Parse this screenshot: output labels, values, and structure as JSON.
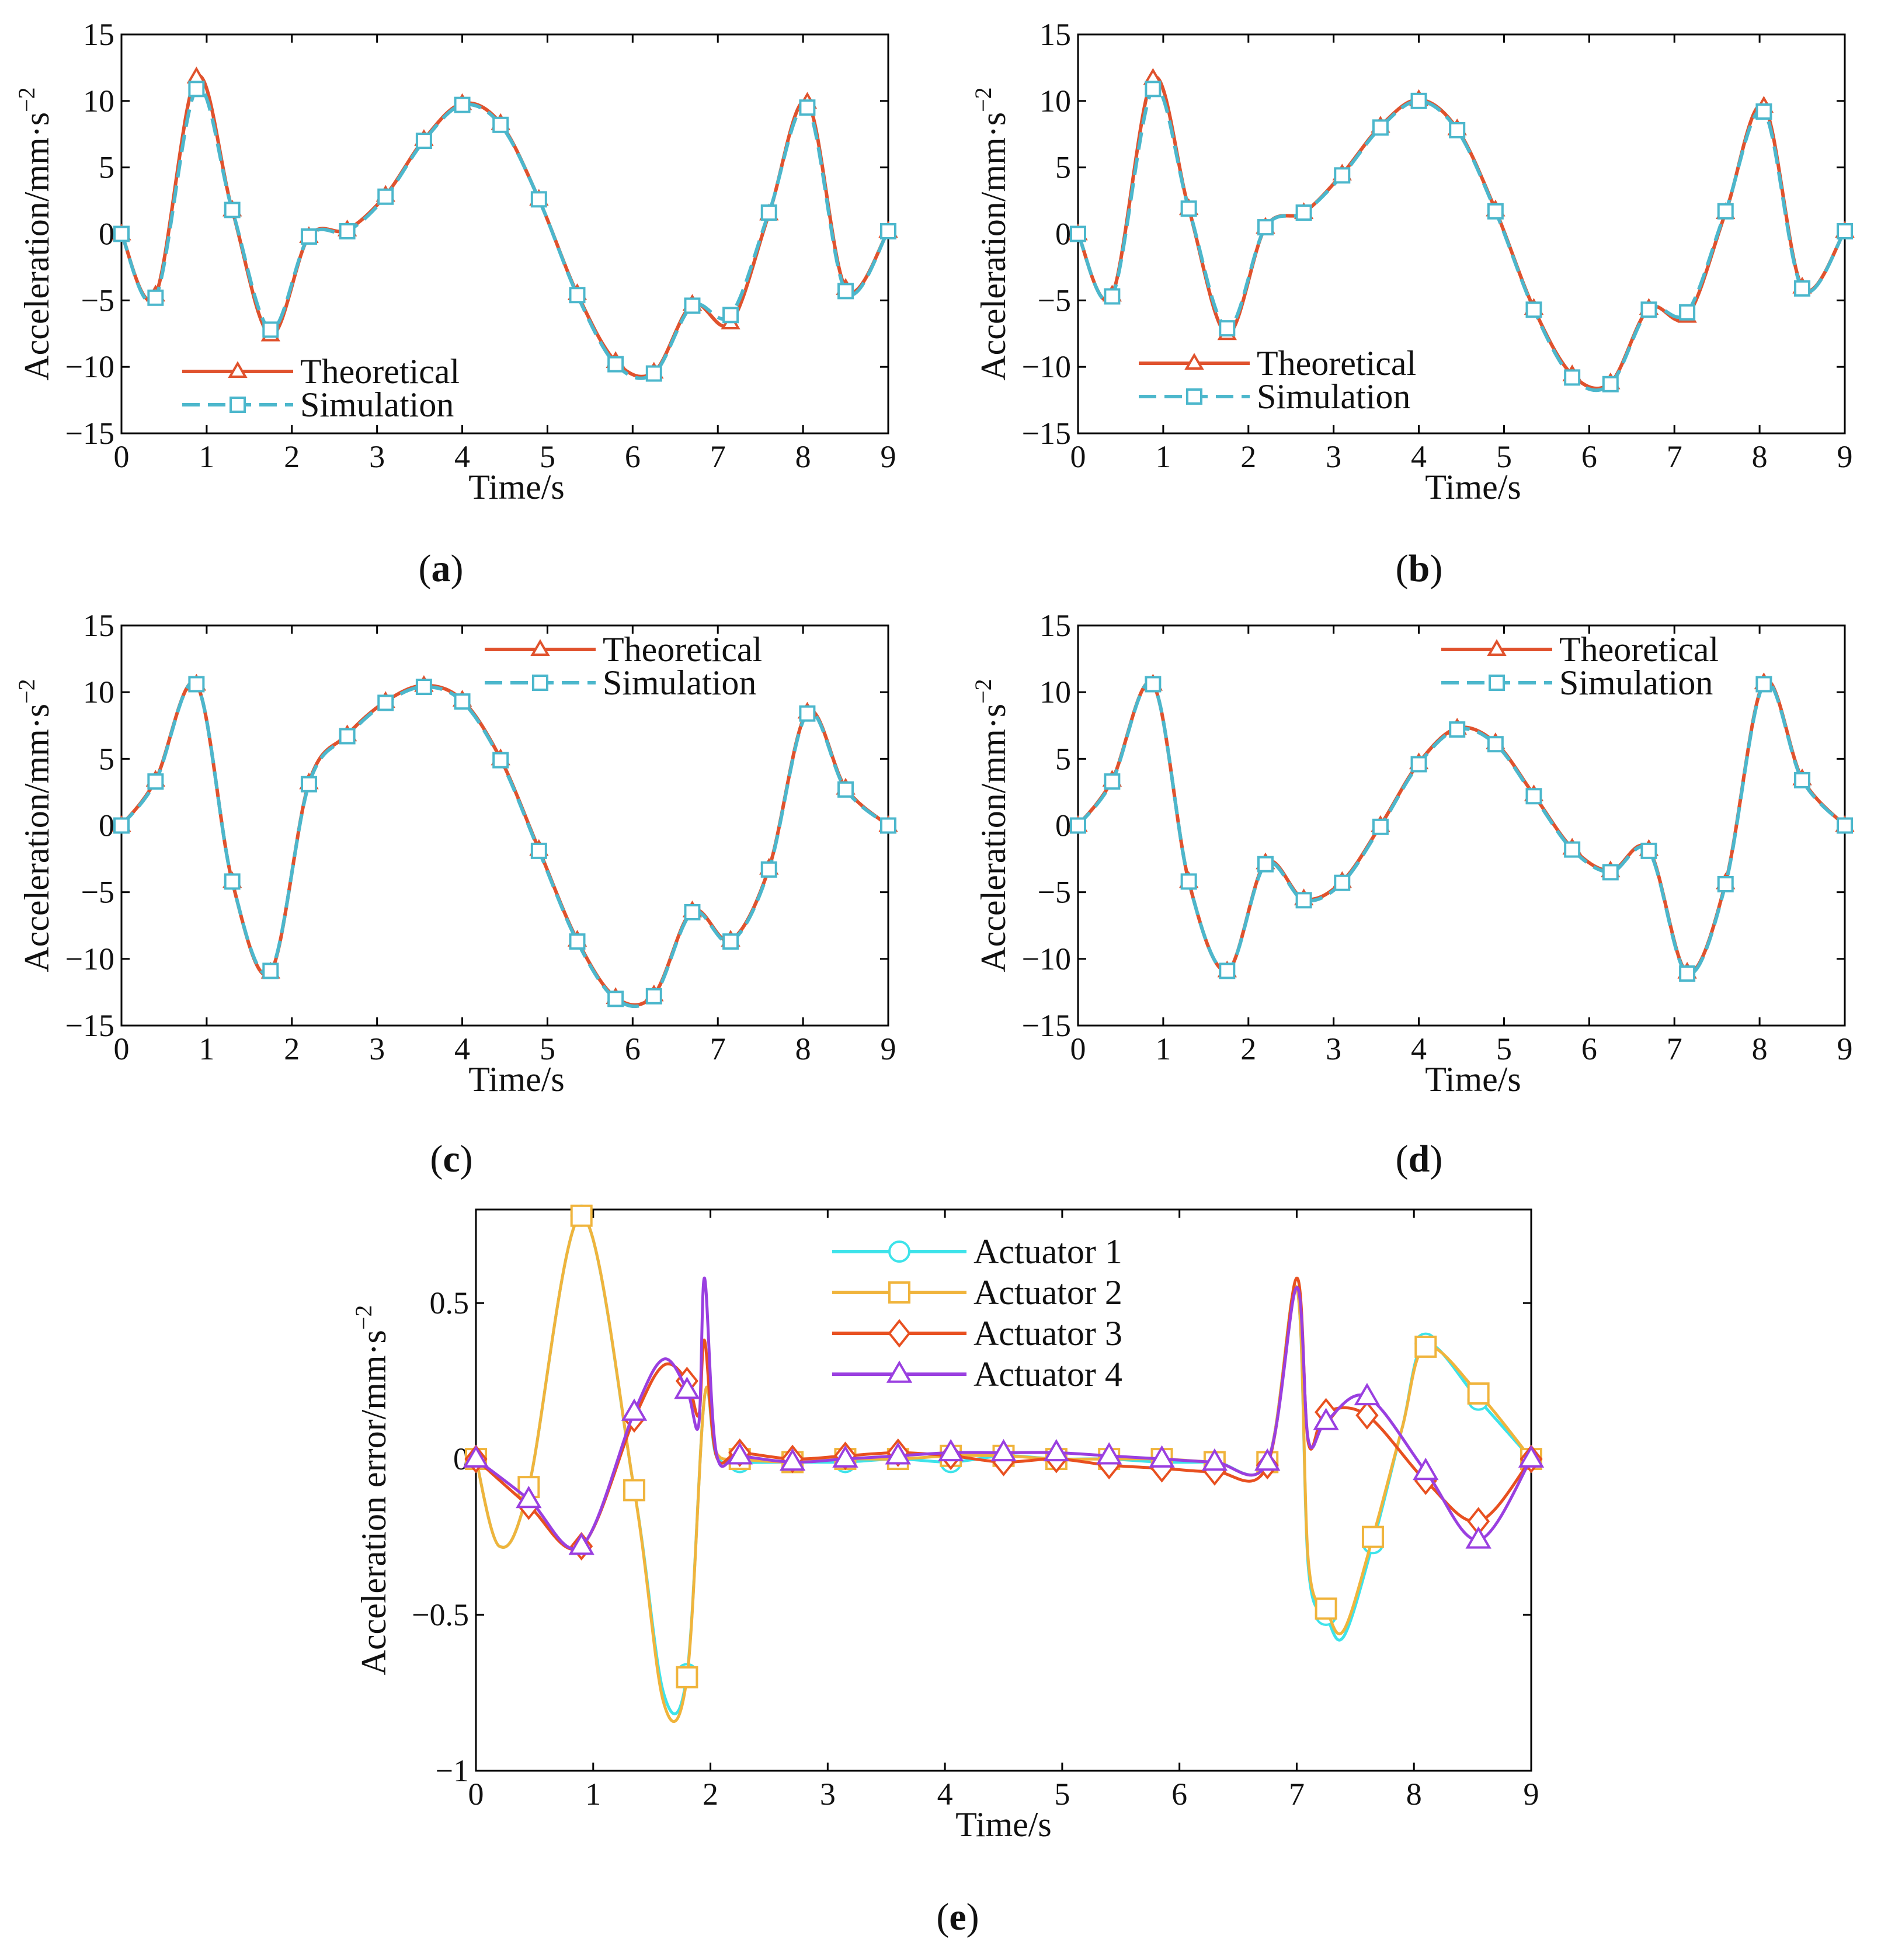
{
  "colors": {
    "theoretical": "#e0522d",
    "simulation": "#4cb7cc",
    "actuator1": "#3de3ea",
    "actuator2": "#f0b43c",
    "actuator3": "#e85020",
    "actuator4": "#9a3fe0"
  },
  "chart_data": [
    {
      "panel": "a",
      "caption": "a",
      "type": "line",
      "xlabel": "Time/s",
      "ylabel": "Acceleration/mm·s",
      "ylabel_sup": "−2",
      "legend_position": "bottom-left",
      "xlim": [
        0,
        9
      ],
      "ylim": [
        -15,
        15
      ],
      "xticks": [
        "0",
        "1",
        "2",
        "3",
        "4",
        "5",
        "6",
        "7",
        "8",
        "9"
      ],
      "yticks": [
        "15",
        "10",
        "5",
        "0",
        "−5",
        "−10",
        "−15"
      ],
      "series": [
        {
          "name": "Theoretical",
          "marker": "triangle",
          "x": [
            0,
            0.4,
            0.88,
            1.3,
            1.75,
            2.2,
            2.65,
            3.1,
            3.55,
            4.0,
            4.45,
            4.9,
            5.35,
            5.8,
            6.25,
            6.7,
            7.15,
            7.6,
            8.05,
            8.5,
            9.0
          ],
          "y": [
            0,
            -4.6,
            11.8,
            1.8,
            -7.6,
            -0.2,
            0.3,
            2.9,
            7.1,
            9.8,
            8.3,
            2.6,
            -4.5,
            -9.6,
            -10.4,
            -5.3,
            -6.7,
            1.5,
            9.9,
            -4.1,
            0.2
          ]
        },
        {
          "name": "Simulation",
          "marker": "square",
          "x": [
            0,
            0.4,
            0.88,
            1.3,
            1.75,
            2.2,
            2.65,
            3.1,
            3.55,
            4.0,
            4.45,
            4.9,
            5.35,
            5.8,
            6.25,
            6.7,
            7.15,
            7.6,
            8.05,
            8.5,
            9.0
          ],
          "y": [
            0,
            -4.8,
            10.9,
            1.8,
            -7.2,
            -0.2,
            0.2,
            2.8,
            7.0,
            9.7,
            8.2,
            2.6,
            -4.6,
            -9.8,
            -10.5,
            -5.4,
            -6.1,
            1.6,
            9.5,
            -4.3,
            0.2
          ]
        }
      ]
    },
    {
      "panel": "b",
      "caption": "b",
      "type": "line",
      "xlabel": "Time/s",
      "ylabel": "Acceleration/mm·s",
      "ylabel_sup": "−2",
      "legend_position": "bottom-left",
      "xlim": [
        0,
        9
      ],
      "ylim": [
        -15,
        15
      ],
      "xticks": [
        "0",
        "1",
        "2",
        "3",
        "4",
        "5",
        "6",
        "7",
        "8",
        "9"
      ],
      "yticks": [
        "15",
        "10",
        "5",
        "0",
        "−5",
        "−10",
        "−15"
      ],
      "series": [
        {
          "name": "Theoretical",
          "marker": "triangle",
          "x": [
            0,
            0.4,
            0.88,
            1.3,
            1.75,
            2.2,
            2.65,
            3.1,
            3.55,
            4.0,
            4.45,
            4.9,
            5.35,
            5.8,
            6.25,
            6.7,
            7.15,
            7.6,
            8.05,
            8.5,
            9.0
          ],
          "y": [
            0,
            -4.6,
            11.7,
            1.9,
            -7.5,
            0.5,
            1.6,
            4.5,
            8.1,
            10.1,
            7.9,
            1.8,
            -5.6,
            -10.6,
            -11.2,
            -5.6,
            -6.2,
            1.6,
            9.6,
            -4.0,
            0.2
          ]
        },
        {
          "name": "Simulation",
          "marker": "square",
          "x": [
            0,
            0.4,
            0.88,
            1.3,
            1.75,
            2.2,
            2.65,
            3.1,
            3.55,
            4.0,
            4.45,
            4.9,
            5.35,
            5.8,
            6.25,
            6.7,
            7.15,
            7.6,
            8.05,
            8.5,
            9.0
          ],
          "y": [
            0,
            -4.7,
            10.9,
            1.9,
            -7.1,
            0.5,
            1.6,
            4.4,
            8.0,
            10.0,
            7.8,
            1.7,
            -5.7,
            -10.8,
            -11.3,
            -5.7,
            -5.9,
            1.7,
            9.2,
            -4.1,
            0.2
          ]
        }
      ]
    },
    {
      "panel": "c",
      "caption": "c",
      "type": "line",
      "xlabel": "Time/s",
      "ylabel": "Acceleration/mm·s",
      "ylabel_sup": "−2",
      "legend_position": "top-right",
      "xlim": [
        0,
        9
      ],
      "ylim": [
        -15,
        15
      ],
      "xticks": [
        "0",
        "1",
        "2",
        "3",
        "4",
        "5",
        "6",
        "7",
        "8",
        "9"
      ],
      "yticks": [
        "15",
        "10",
        "5",
        "0",
        "−5",
        "−10",
        "−15"
      ],
      "series": [
        {
          "name": "Theoretical",
          "marker": "triangle",
          "x": [
            0,
            0.4,
            0.88,
            1.3,
            1.75,
            2.2,
            2.65,
            3.1,
            3.55,
            4.0,
            4.45,
            4.9,
            5.35,
            5.8,
            6.25,
            6.7,
            7.15,
            7.6,
            8.05,
            8.5,
            9.0
          ],
          "y": [
            0,
            3.4,
            10.6,
            -4.2,
            -11.0,
            3.2,
            6.8,
            9.3,
            10.5,
            9.4,
            5.0,
            -1.8,
            -8.6,
            -12.9,
            -12.7,
            -6.4,
            -8.6,
            -3.2,
            8.5,
            2.8,
            0
          ]
        },
        {
          "name": "Simulation",
          "marker": "square",
          "x": [
            0,
            0.4,
            0.88,
            1.3,
            1.75,
            2.2,
            2.65,
            3.1,
            3.55,
            4.0,
            4.45,
            4.9,
            5.35,
            5.8,
            6.25,
            6.7,
            7.15,
            7.6,
            8.05,
            8.5,
            9.0
          ],
          "y": [
            0,
            3.3,
            10.6,
            -4.2,
            -10.9,
            3.1,
            6.7,
            9.2,
            10.4,
            9.3,
            4.9,
            -1.9,
            -8.7,
            -13.0,
            -12.8,
            -6.5,
            -8.7,
            -3.3,
            8.4,
            2.7,
            0
          ]
        }
      ]
    },
    {
      "panel": "d",
      "caption": "d",
      "type": "line",
      "xlabel": "Time/s",
      "ylabel": "Acceleration/mm·s",
      "ylabel_sup": "−2",
      "legend_position": "top-right",
      "xlim": [
        0,
        9
      ],
      "ylim": [
        -15,
        15
      ],
      "xticks": [
        "0",
        "1",
        "2",
        "3",
        "4",
        "5",
        "6",
        "7",
        "8",
        "9"
      ],
      "yticks": [
        "15",
        "10",
        "5",
        "0",
        "−5",
        "−10",
        "−15"
      ],
      "series": [
        {
          "name": "Theoretical",
          "marker": "triangle",
          "x": [
            0,
            0.4,
            0.88,
            1.3,
            1.75,
            2.2,
            2.65,
            3.1,
            3.55,
            4.0,
            4.45,
            4.9,
            5.35,
            5.8,
            6.25,
            6.7,
            7.15,
            7.6,
            8.05,
            8.5,
            9.0
          ],
          "y": [
            0,
            3.4,
            10.6,
            -4.2,
            -10.9,
            -2.8,
            -5.5,
            -4.2,
            0,
            4.7,
            7.3,
            6.2,
            2.3,
            -1.7,
            -3.4,
            -1.8,
            -11.0,
            -4.3,
            10.7,
            3.5,
            0
          ]
        },
        {
          "name": "Simulation",
          "marker": "square",
          "x": [
            0,
            0.4,
            0.88,
            1.3,
            1.75,
            2.2,
            2.65,
            3.1,
            3.55,
            4.0,
            4.45,
            4.9,
            5.35,
            5.8,
            6.25,
            6.7,
            7.15,
            7.6,
            8.05,
            8.5,
            9.0
          ],
          "y": [
            0,
            3.3,
            10.6,
            -4.2,
            -10.9,
            -2.9,
            -5.6,
            -4.3,
            -0.1,
            4.6,
            7.2,
            6.1,
            2.2,
            -1.8,
            -3.5,
            -1.9,
            -11.1,
            -4.4,
            10.6,
            3.4,
            0
          ]
        }
      ]
    },
    {
      "panel": "e",
      "caption": "e",
      "type": "line",
      "xlabel": "Time/s",
      "ylabel": "Acceleration error/mm·s",
      "ylabel_sup": "−2",
      "legend_position": "top-center",
      "xlim": [
        0,
        9
      ],
      "ylim": [
        -1,
        0.8
      ],
      "xticks": [
        "0",
        "1",
        "2",
        "3",
        "4",
        "5",
        "6",
        "7",
        "8",
        "9"
      ],
      "yticks": [
        "0.5",
        "0",
        "−0.5",
        "−1"
      ],
      "series": [
        {
          "name": "Actuator 1",
          "marker": "circle",
          "x": [
            0,
            0.2,
            0.45,
            0.9,
            1.35,
            1.6,
            1.8,
            1.95,
            2.05,
            2.25,
            2.7,
            3.15,
            3.6,
            4.05,
            4.5,
            4.95,
            5.4,
            5.85,
            6.3,
            6.75,
            7.0,
            7.1,
            7.25,
            7.4,
            7.65,
            7.9,
            8.1,
            8.55,
            9.0
          ],
          "y": [
            0,
            -0.28,
            -0.09,
            0.78,
            -0.1,
            -0.75,
            -0.69,
            0.2,
            0.01,
            -0.01,
            -0.01,
            -0.01,
            0.0,
            -0.01,
            0.01,
            0.0,
            0.0,
            -0.01,
            -0.01,
            -0.01,
            0.55,
            -0.35,
            -0.5,
            -0.57,
            -0.27,
            0.1,
            0.37,
            0.19,
            0
          ]
        },
        {
          "name": "Actuator 2",
          "marker": "square",
          "x": [
            0,
            0.2,
            0.45,
            0.9,
            1.35,
            1.6,
            1.8,
            1.95,
            2.05,
            2.25,
            2.7,
            3.15,
            3.6,
            4.05,
            4.5,
            4.95,
            5.4,
            5.85,
            6.3,
            6.75,
            7.0,
            7.1,
            7.25,
            7.4,
            7.65,
            7.9,
            8.1,
            8.55,
            9.0
          ],
          "y": [
            0,
            -0.28,
            -0.09,
            0.78,
            -0.1,
            -0.78,
            -0.7,
            0.2,
            0.02,
            0.0,
            -0.01,
            0.0,
            0.0,
            0.01,
            0.01,
            0.0,
            0.0,
            0.0,
            -0.01,
            -0.01,
            0.55,
            -0.33,
            -0.48,
            -0.55,
            -0.25,
            0.1,
            0.36,
            0.21,
            0
          ]
        },
        {
          "name": "Actuator 3",
          "marker": "diamond",
          "x": [
            0,
            0.45,
            0.9,
            1.35,
            1.6,
            1.8,
            1.9,
            1.95,
            2.05,
            2.25,
            2.7,
            3.15,
            3.6,
            4.05,
            4.5,
            4.95,
            5.4,
            5.85,
            6.3,
            6.75,
            7.0,
            7.1,
            7.25,
            7.6,
            8.1,
            8.55,
            9.0
          ],
          "y": [
            0,
            -0.15,
            -0.28,
            0.13,
            0.3,
            0.25,
            0.14,
            0.38,
            0.01,
            0.02,
            0.0,
            0.01,
            0.02,
            0.01,
            -0.01,
            0.0,
            -0.02,
            -0.03,
            -0.04,
            -0.02,
            0.58,
            0.05,
            0.15,
            0.14,
            -0.07,
            -0.2,
            0
          ]
        },
        {
          "name": "Actuator 4",
          "marker": "triangle",
          "x": [
            0,
            0.45,
            0.9,
            1.35,
            1.6,
            1.8,
            1.9,
            1.95,
            2.05,
            2.25,
            2.7,
            3.15,
            3.6,
            4.05,
            4.5,
            4.95,
            5.4,
            5.85,
            6.3,
            6.75,
            7.0,
            7.1,
            7.25,
            7.6,
            8.1,
            8.55,
            9.0
          ],
          "y": [
            0,
            -0.13,
            -0.28,
            0.15,
            0.32,
            0.22,
            0.11,
            0.58,
            0.02,
            0.01,
            -0.01,
            0.0,
            0.01,
            0.02,
            0.02,
            0.02,
            0.01,
            0.0,
            -0.01,
            -0.01,
            0.55,
            0.06,
            0.12,
            0.2,
            -0.04,
            -0.26,
            0
          ]
        }
      ]
    }
  ]
}
